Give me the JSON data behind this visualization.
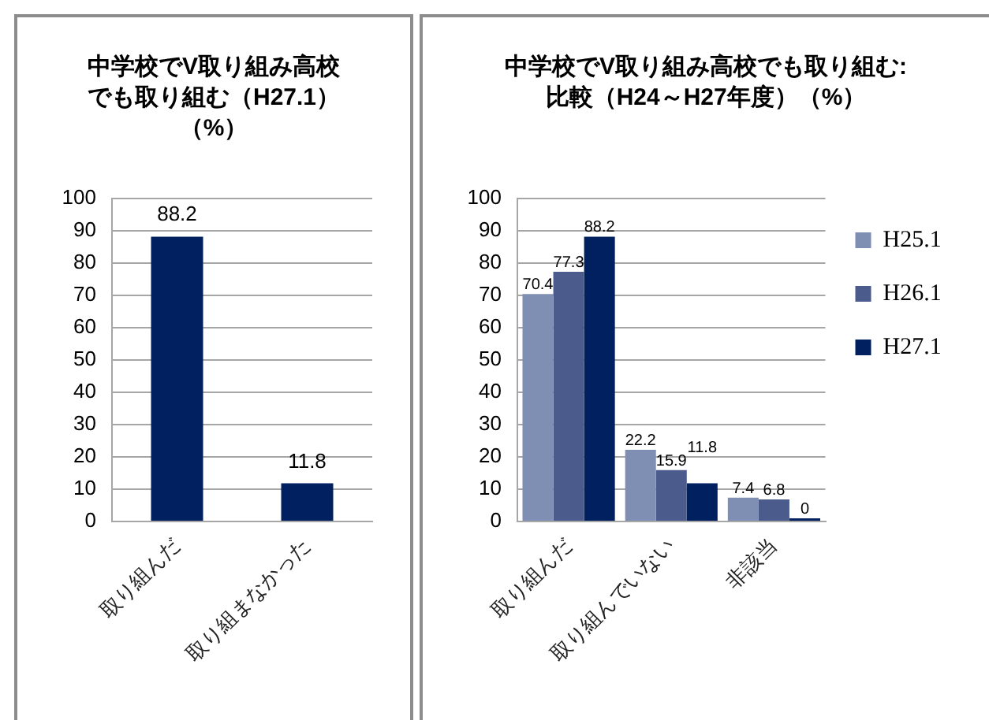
{
  "chart_data": [
    {
      "type": "bar",
      "title": "中学校でV取り組み高校でも取り組む（H27.1）（%）",
      "categories": [
        "取り組んだ",
        "取り組まなかった"
      ],
      "values": [
        88.2,
        11.8
      ],
      "color": "#002060",
      "ylim": [
        0,
        100
      ],
      "yticks": [
        0,
        10,
        20,
        30,
        40,
        50,
        60,
        70,
        80,
        90,
        100
      ],
      "grid": "y",
      "data_labels": true
    },
    {
      "type": "bar",
      "title": "中学校でV取り組み高校でも取り組む:比較（H24～H27年度）（%）",
      "categories": [
        "取り組んだ",
        "取り組んでいない",
        "非該当"
      ],
      "series": [
        {
          "name": "H25.1",
          "color": "#7f8fb3",
          "values": [
            70.4,
            22.2,
            7.4
          ]
        },
        {
          "name": "H26.1",
          "color": "#4a5b8c",
          "values": [
            77.3,
            15.9,
            6.8
          ]
        },
        {
          "name": "H27.1",
          "color": "#002060",
          "values": [
            88.2,
            11.8,
            0
          ]
        }
      ],
      "ylim": [
        0,
        100
      ],
      "yticks": [
        0,
        10,
        20,
        30,
        40,
        50,
        60,
        70,
        80,
        90,
        100
      ],
      "grid": "y",
      "legend": "right",
      "data_labels": true
    }
  ]
}
